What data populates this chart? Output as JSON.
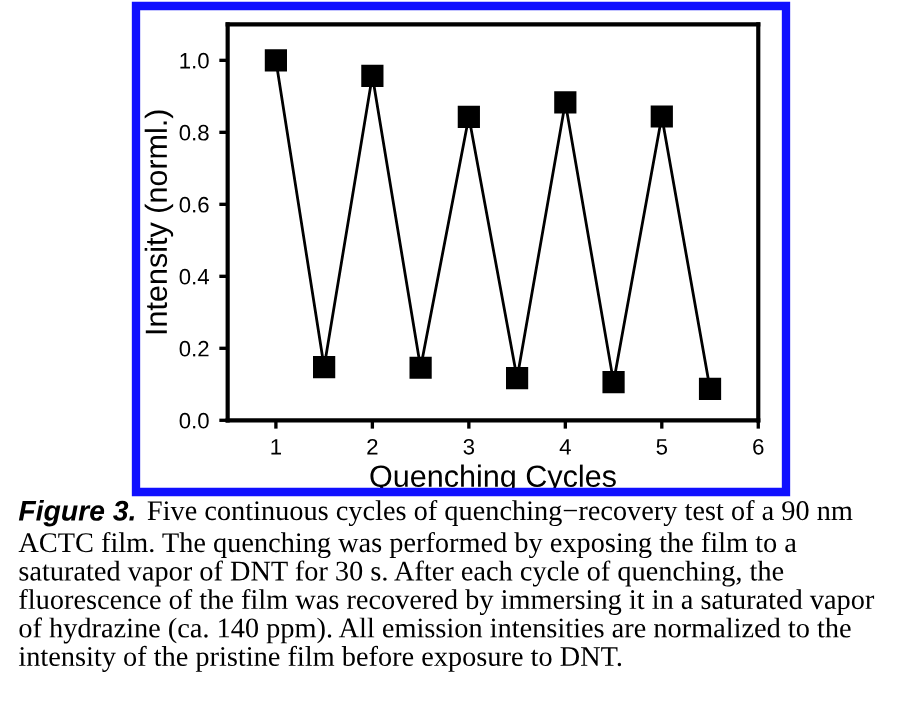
{
  "chart_data": {
    "type": "line",
    "xlabel": "Quenching Cycles",
    "ylabel": "Intensity (norml.)",
    "x": [
      1,
      1.5,
      2,
      2.5,
      3,
      3.5,
      4,
      4.5,
      5,
      5.5
    ],
    "series": [
      {
        "color": "#000000",
        "values": [
          1.0,
          0.148,
          0.957,
          0.146,
          0.843,
          0.117,
          0.883,
          0.106,
          0.844,
          0.087
        ]
      }
    ],
    "xlim": [
      0.5,
      6
    ],
    "xticks": [
      1,
      2,
      3,
      4,
      5,
      6
    ],
    "ylim": [
      0,
      1.1
    ],
    "yticks": [
      {
        "value": 0,
        "label": "0.0"
      },
      0.2,
      0.4,
      0.6,
      0.8,
      {
        "value": 1,
        "label": "1.0"
      }
    ],
    "marker": "square",
    "line_style": "solid",
    "annotations": [
      "Figure 3.",
      "Five continuous cycles of quenching−recovery test of a 90 nm ACTC film. The quenching was performed by exposing the film to a saturated vapor of DNT for 30 s. After each cycle of quenching, the fluorescence of the film was recovered by immersing it in a saturated vapor of hydrazine (ca. 140 ppm). All emission intensities are normalized to the intensity of the pristine film before exposure to DNT."
    ]
  }
}
